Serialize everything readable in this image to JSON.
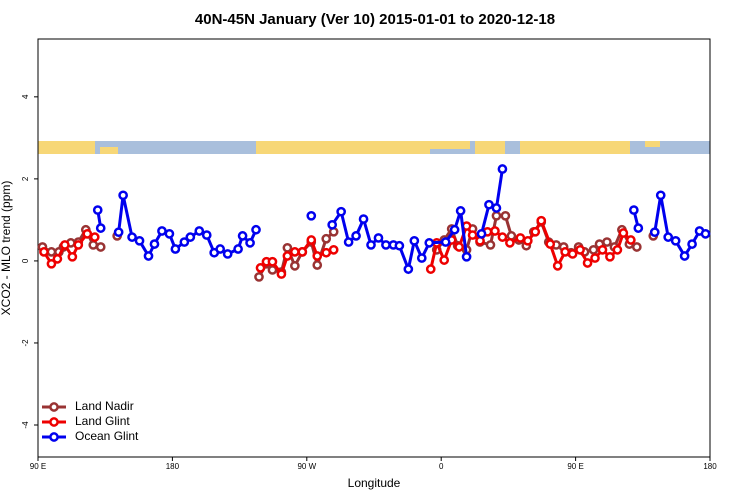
{
  "chart_data": {
    "type": "line",
    "title": "40N-45N January (Ver 10)   2015-01-01 to 2020-12-18",
    "xlabel": "Longitude",
    "ylabel": "XCO2 - MLO trend (ppm)",
    "xlim": [
      -270,
      180
    ],
    "ylim": [
      -4.78,
      5.41
    ],
    "xticks": [
      {
        "value": -270,
        "label": "90 E"
      },
      {
        "value": -180,
        "label": "180"
      },
      {
        "value": -90,
        "label": "90 W"
      },
      0,
      {
        "value": 90,
        "label": "90 E"
      },
      180
    ],
    "yticks": [
      -4,
      -2,
      0,
      2,
      4
    ],
    "legend": "bottom-left",
    "series": [
      {
        "name": "Land Nadir",
        "color": "#993333",
        "x": [
          -267,
          -261,
          -256,
          -253,
          -248,
          -243,
          -238,
          -233,
          -228,
          null,
          -217,
          null,
          -122,
          -117,
          -113,
          -107,
          -103,
          -98,
          -93,
          -87,
          -83,
          -77,
          -72,
          null,
          -3,
          2,
          7,
          11,
          17,
          21,
          26,
          33,
          37,
          43,
          47,
          52,
          57,
          62,
          67,
          72,
          77,
          82,
          87,
          92,
          96,
          102,
          106,
          111,
          116,
          121,
          126,
          131,
          null,
          142
        ],
        "values": [
          0.34,
          0.22,
          0.22,
          0.34,
          0.44,
          0.46,
          0.76,
          0.39,
          0.34,
          null,
          0.61,
          null,
          -0.39,
          -0.07,
          -0.22,
          -0.27,
          0.32,
          -0.12,
          0.22,
          0.46,
          -0.1,
          0.54,
          0.71,
          null,
          0.27,
          0.51,
          0.78,
          0.37,
          0.27,
          0.78,
          0.46,
          0.39,
          1.1,
          1.1,
          0.61,
          0.51,
          0.37,
          0.71,
          0.95,
          0.46,
          0.39,
          0.34,
          0.2,
          0.34,
          0.22,
          0.27,
          0.41,
          0.46,
          0.34,
          0.76,
          0.41,
          0.34,
          null,
          0.61
        ]
      },
      {
        "name": "Land Glint",
        "color": "#ee0000",
        "x": [
          -266,
          -261,
          -257,
          -252,
          -247,
          -243,
          -237,
          -232,
          null,
          -121,
          -117,
          -113,
          -107,
          -103,
          -98,
          -93,
          -87,
          -83,
          -77,
          -72,
          null,
          -7,
          -3,
          2,
          7,
          12,
          17,
          21,
          26,
          31,
          36,
          41,
          46,
          53,
          58,
          63,
          67,
          73,
          78,
          83,
          88,
          93,
          98,
          103,
          108,
          113,
          118,
          122,
          127
        ],
        "values": [
          0.22,
          -0.07,
          0.05,
          0.39,
          0.1,
          0.39,
          0.66,
          0.58,
          null,
          -0.17,
          -0.02,
          -0.02,
          -0.32,
          0.12,
          0.22,
          0.22,
          0.51,
          0.12,
          0.2,
          0.27,
          null,
          -0.2,
          0.44,
          0.02,
          0.51,
          0.34,
          0.85,
          0.63,
          0.49,
          0.71,
          0.73,
          0.58,
          0.44,
          0.56,
          0.49,
          0.71,
          0.98,
          0.41,
          -0.12,
          0.22,
          0.17,
          0.27,
          -0.05,
          0.07,
          0.27,
          0.1,
          0.27,
          0.68,
          0.51
        ]
      },
      {
        "name": "Ocean Glint",
        "color": "#0000ee",
        "x": [
          -230,
          -228,
          null,
          -216,
          -213,
          -207,
          -202,
          -196,
          -192,
          -187,
          -182,
          -178,
          -172,
          -168,
          -162,
          -157,
          -152,
          -148,
          -143,
          -136,
          -133,
          -128,
          -124,
          null,
          -87,
          null,
          -73,
          -67,
          -62,
          -57,
          -52,
          -47,
          -42,
          -37,
          -32,
          -28,
          -22,
          -18,
          -13,
          -8,
          3,
          9,
          13,
          17,
          null,
          27,
          32,
          37,
          41,
          null,
          129,
          132,
          null,
          143,
          147,
          152,
          157,
          163,
          168,
          173,
          177
        ],
        "values": [
          1.24,
          0.8,
          null,
          0.7,
          1.6,
          0.58,
          0.49,
          0.12,
          0.41,
          0.73,
          0.66,
          0.29,
          0.46,
          0.58,
          0.73,
          0.63,
          0.2,
          0.29,
          0.17,
          0.29,
          0.61,
          0.44,
          0.76,
          null,
          1.1,
          null,
          0.88,
          1.2,
          0.46,
          0.61,
          1.02,
          0.39,
          0.56,
          0.39,
          0.39,
          0.37,
          -0.2,
          0.49,
          0.07,
          0.44,
          0.46,
          0.76,
          1.22,
          0.1,
          null,
          0.66,
          1.37,
          1.29,
          2.24,
          null,
          1.24,
          0.8,
          null,
          0.7,
          1.6,
          0.58,
          0.49,
          0.12,
          0.41,
          0.73,
          0.66
        ]
      }
    ]
  }
}
